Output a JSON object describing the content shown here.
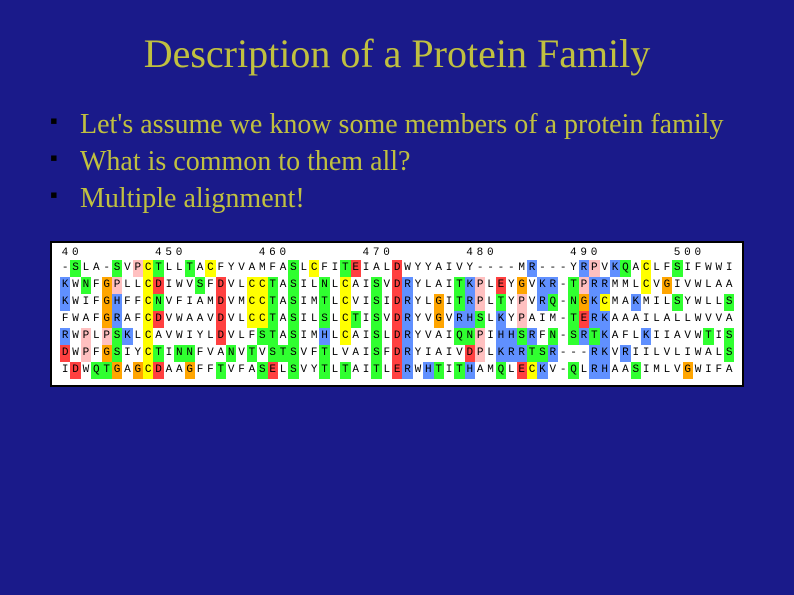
{
  "title": "Description of a Protein Family",
  "bullets": [
    "Let's assume we know some members of a protein family",
    "What is common to them all?",
    "Multiple alignment!"
  ],
  "alignment": {
    "ruler_start": 440,
    "ruler_step": 10,
    "ruler_end": 500,
    "residue_colors": {
      "A": "#ffffff",
      "C": "#ffff00",
      "D": "#ff4040",
      "E": "#ff4040",
      "F": "#ffffff",
      "G": "#ffa500",
      "H": "#6090ff",
      "I": "#ffffff",
      "K": "#6090ff",
      "L": "#ffffff",
      "M": "#ffffff",
      "N": "#30ff30",
      "P": "#ffc0c0",
      "Q": "#30ff30",
      "R": "#6090ff",
      "S": "#30ff30",
      "T": "#30ff30",
      "V": "#ffffff",
      "W": "#ffffff",
      "Y": "#ffffff",
      "-": "#ffffff"
    },
    "sequences": [
      "-SLA-SVPCTLLTACFYVAMFASLCFITEIALDWYYAIVY----MR---YRPVKQACLFSIFWWI",
      "KWNFGPLLCDIWVSFDVLCCTASILNLCAISVDRYLAITKPLEYGVKR-TPRRMMLCVGIVWLAA",
      "KWIFGHFFCNVFIAMDVMCCTASIMTLCVISIDRYLGITRPLTYPVRQ-NGKCMAKMILSYWLLS",
      "FWAFGRAFCDVWAAVDVLCCTASILSLCTISVDRYVGVRHSLKYPAIM-TERKAAAILALLWVVA",
      "RWPLPSKLCAVWIYLDVLFSTASIMHLCAISLDRYVAIQNPIHHSRFN-SRTKAFLKIIAVWTIS",
      "DWPFGSIYCTINNFVANVTVSTSVFTLVAISFDRYIAIVDPLKRRTSR---RKVRIILVLIWALS",
      "IDWQTGAGCDAAGFFTVFASELSVYTLTAITLERWHTITHAMQLECKV-QLRHAASIMLVGWIFA"
    ]
  },
  "style": {
    "background": "#1a1a8a",
    "title_color": "#c0c040",
    "text_color": "#c0c040",
    "panel_bg": "#ffffff"
  }
}
